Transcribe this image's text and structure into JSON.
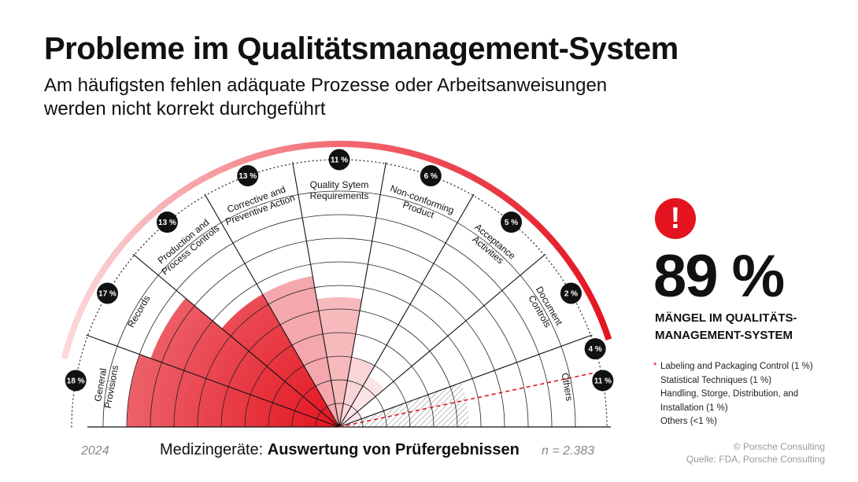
{
  "title": "Probleme im Qualitätsmanagement-System",
  "subtitle": "Am häufigsten fehlen adäquate Prozesse oder Arbeitsanweisungen werden nicht korrekt durchgeführt",
  "kpi": {
    "icon": "exclamation-icon",
    "value": "89 %",
    "label": "MÄNGEL IM QUALITÄTS-MANAGEMENT-SYSTEM"
  },
  "notes": [
    "Labeling and Packaging Control (1 %)",
    "Statistical Techniques (1 %)",
    "Handling, Storge, Distribution, and Installation (1 %)",
    "Others (<1 %)"
  ],
  "footer": {
    "year": "2024",
    "caption_prefix": "Medizingeräte: ",
    "caption_bold": "Auswertung von Prüfergebnissen",
    "n": "n = 2.383"
  },
  "credit": {
    "line1": "© Porsche Consulting",
    "line2": "Quelle: FDA, Porsche Consulting"
  },
  "colors": {
    "accent": "#e3141f",
    "accent_light": "#f7b0b4",
    "text": "#111111",
    "muted": "#888888"
  },
  "chart_data": {
    "type": "polar-area",
    "categories": [
      "General Provisions",
      "Records",
      "Production and Process Controls",
      "Corrective and Preventive Action",
      "Quality Sytem Requirements",
      "Non-conforming Product",
      "Acceptance Activities",
      "Document Controls",
      "Others"
    ],
    "values": [
      18,
      17,
      13,
      13,
      11,
      6,
      5,
      2,
      11
    ],
    "value_labels": [
      "18 %",
      "17 %",
      "13 %",
      "13 %",
      "11 %",
      "6 %",
      "5 %",
      "2 %",
      "11 %"
    ],
    "extra_label": "4 %",
    "unit": "%",
    "max": 20,
    "rings": 10
  }
}
